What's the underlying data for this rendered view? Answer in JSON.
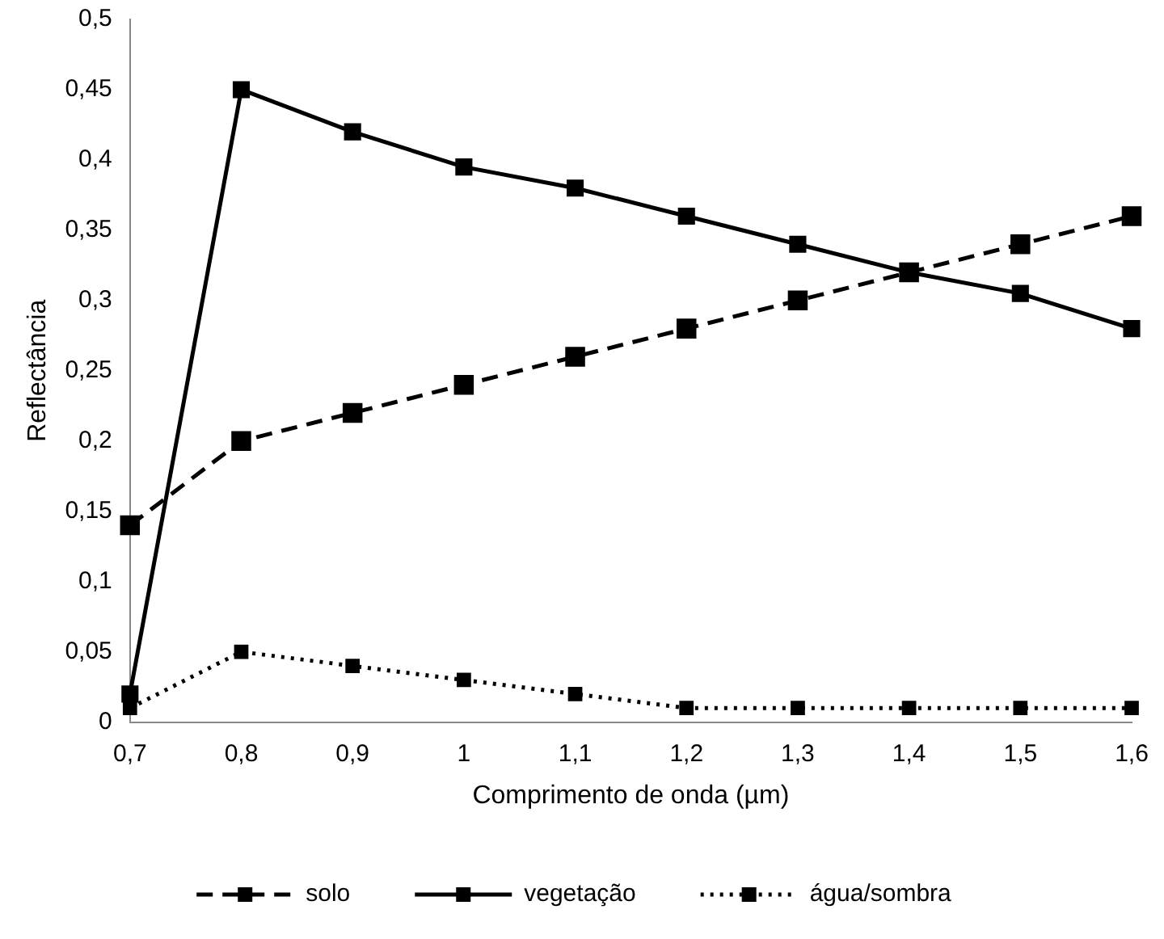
{
  "chart_data": {
    "type": "line",
    "xlabel": "Comprimento de onda (µm)",
    "ylabel": "Reflectância",
    "categories": [
      "0,7",
      "0,8",
      "0,9",
      "1",
      "1,1",
      "1,2",
      "1,3",
      "1,4",
      "1,5",
      "1,6"
    ],
    "series": [
      {
        "name": "solo",
        "color": "#000000",
        "line_style": "dashed",
        "values": [
          0.14,
          0.2,
          0.22,
          0.24,
          0.26,
          0.28,
          0.3,
          0.32,
          0.34,
          0.36
        ]
      },
      {
        "name": "vegetação",
        "color": "#000000",
        "line_style": "solid",
        "values": [
          0.02,
          0.45,
          0.42,
          0.395,
          0.38,
          0.36,
          0.34,
          0.32,
          0.305,
          0.28
        ]
      },
      {
        "name": "água/sombra",
        "color": "#000000",
        "line_style": "dotted",
        "values": [
          0.01,
          0.05,
          0.04,
          0.03,
          0.02,
          0.01,
          0.01,
          0.01,
          0.01,
          0.01
        ]
      }
    ],
    "ylim": [
      0,
      0.5
    ],
    "yticks": [
      0,
      {
        "value": 0.05,
        "label": "0,05"
      },
      {
        "value": 0.1,
        "label": "0,1"
      },
      {
        "value": 0.15,
        "label": "0,15"
      },
      {
        "value": 0.2,
        "label": "0,2"
      },
      {
        "value": 0.25,
        "label": "0,25"
      },
      {
        "value": 0.3,
        "label": "0,3"
      },
      {
        "value": 0.35,
        "label": "0,35"
      },
      {
        "value": 0.4,
        "label": "0,4"
      },
      {
        "value": 0.45,
        "label": "0,45"
      },
      {
        "value": 0.5,
        "label": "0,5"
      }
    ],
    "grid": false,
    "legend": "bottom",
    "marker": "square"
  }
}
